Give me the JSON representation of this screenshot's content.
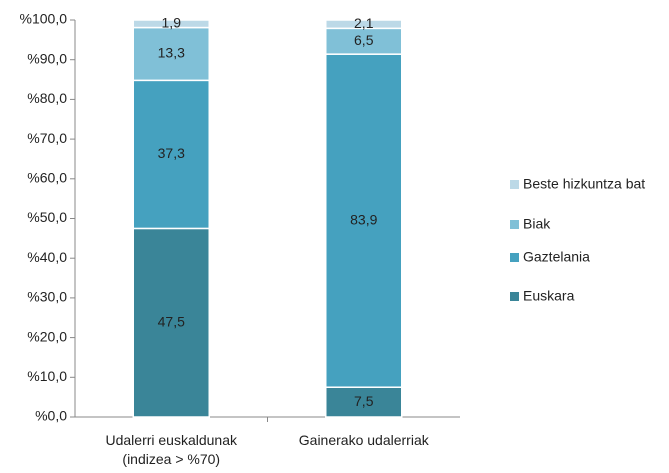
{
  "chart_data": {
    "type": "stacked_bar",
    "categories": [
      "Udalerri euskaldunak\n(indizea > %70)",
      "Gainerako udalerriak"
    ],
    "series": [
      {
        "name": "Euskara",
        "color": "#3a8598",
        "values": [
          47.5,
          7.5
        ],
        "value_labels": [
          "47,5",
          "7,5"
        ]
      },
      {
        "name": "Gaztelania",
        "color": "#45a1bf",
        "values": [
          37.3,
          83.9
        ],
        "value_labels": [
          "37,3",
          "83,9"
        ]
      },
      {
        "name": "Biak",
        "color": "#80c0d7",
        "values": [
          13.3,
          6.5
        ],
        "value_labels": [
          "13,3",
          "6,5"
        ]
      },
      {
        "name": "Beste hizkuntza bat",
        "color": "#bcd9e7",
        "values": [
          1.9,
          2.1
        ],
        "value_labels": [
          "1,9",
          "2,1"
        ]
      }
    ],
    "ylim": [
      0,
      100
    ],
    "yticks": [
      {
        "value": 0,
        "label": "%0,0"
      },
      {
        "value": 10,
        "label": "%10,0"
      },
      {
        "value": 20,
        "label": "%20,0"
      },
      {
        "value": 30,
        "label": "%30,0"
      },
      {
        "value": 40,
        "label": "%40,0"
      },
      {
        "value": 50,
        "label": "%50,0"
      },
      {
        "value": 60,
        "label": "%60,0"
      },
      {
        "value": 70,
        "label": "%70,0"
      },
      {
        "value": 80,
        "label": "%80,0"
      },
      {
        "value": 90,
        "label": "%90,0"
      },
      {
        "value": 100,
        "label": "%100,0"
      }
    ],
    "grid": false,
    "legend": "right"
  }
}
